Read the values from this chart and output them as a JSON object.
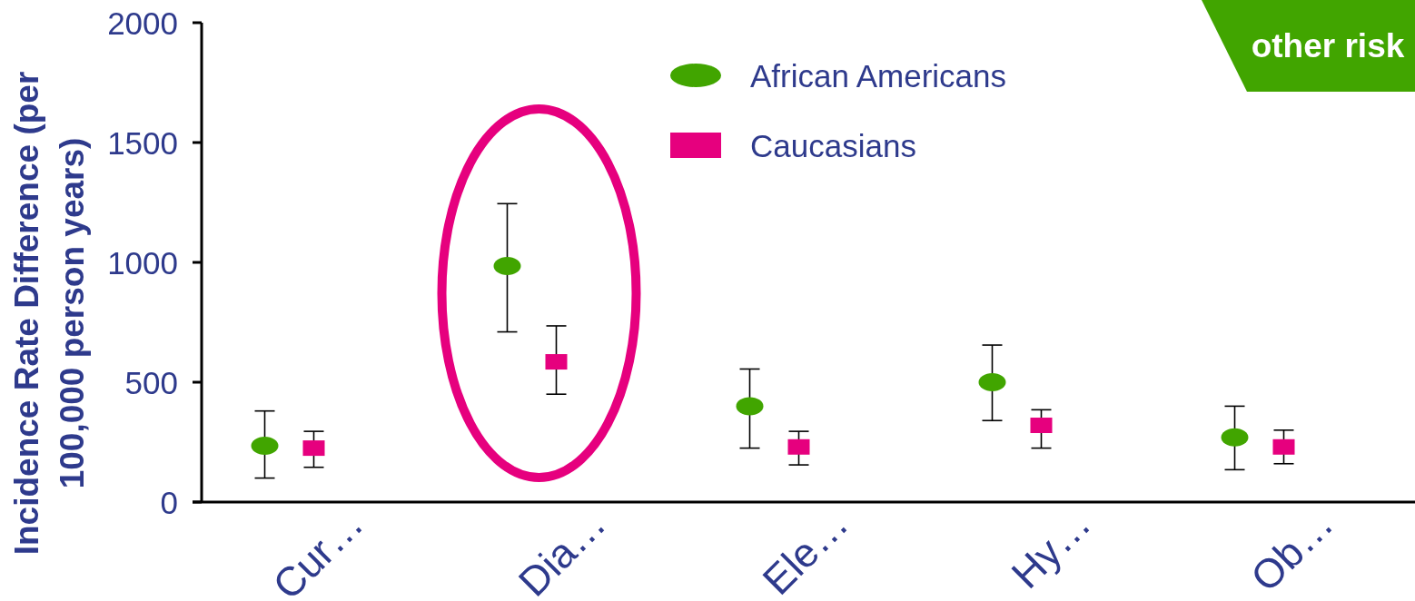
{
  "chart_data": {
    "type": "scatter",
    "categories": [
      "Cur…",
      "Dia…",
      "Ele…",
      "Hy…",
      "Ob…"
    ],
    "ylabel": "Incidence Rate Difference (per 100,000 person years)",
    "annotations": [
      "other risk"
    ],
    "series": [
      {
        "name": "African Americans",
        "color": "#41a500",
        "marker": "circle",
        "values": [
          235,
          985,
          400,
          500,
          270
        ],
        "errors": [
          [
            100,
            380
          ],
          [
            710,
            1245
          ],
          [
            225,
            555
          ],
          [
            340,
            655
          ],
          [
            135,
            400
          ]
        ]
      },
      {
        "name": "Caucasians",
        "color": "#e6007e",
        "marker": "square",
        "values": [
          225,
          585,
          230,
          320,
          230
        ],
        "errors": [
          [
            145,
            295
          ],
          [
            450,
            735
          ],
          [
            155,
            295
          ],
          [
            225,
            385
          ],
          [
            160,
            300
          ]
        ]
      }
    ],
    "ylim": [
      0,
      2000
    ],
    "yticks": [
      0,
      500,
      1000,
      1500,
      2000
    ],
    "legend": "top"
  }
}
